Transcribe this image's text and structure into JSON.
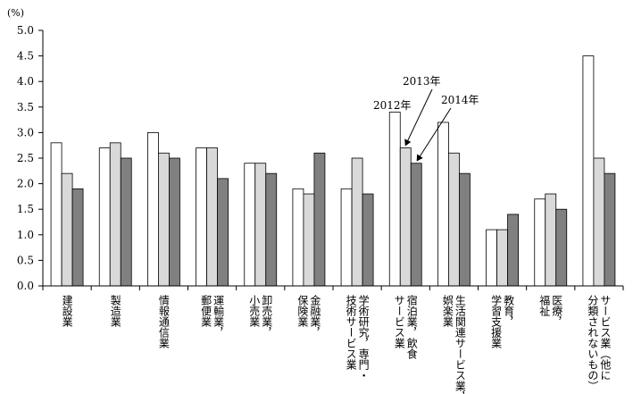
{
  "chart_data": {
    "type": "bar",
    "ylabel": "(%)",
    "ylim": [
      0,
      5
    ],
    "yticks": [
      "0.0",
      "0.5",
      "1.0",
      "1.5",
      "2.0",
      "2.5",
      "3.0",
      "3.5",
      "4.0",
      "4.5",
      "5.0"
    ],
    "categories": [
      [
        "建設業"
      ],
      [
        "製造業"
      ],
      [
        "情報通信業"
      ],
      [
        "運輸業，",
        "郵便業"
      ],
      [
        "卸売業，",
        "小売業"
      ],
      [
        "金融業，",
        "保険業"
      ],
      [
        "学術研究，専門・",
        "技術サービス業"
      ],
      [
        "宿泊業，飲食",
        "サービス業"
      ],
      [
        "生活関連サービス業，",
        "娯楽業"
      ],
      [
        "教育，",
        "学習支援業"
      ],
      [
        "医療，",
        "福祉"
      ],
      [
        "サービス業（他に",
        "分類されないもの）"
      ]
    ],
    "series": [
      {
        "name": "2012年",
        "color": "#ffffff",
        "values": [
          2.8,
          2.7,
          3.0,
          2.7,
          2.4,
          1.9,
          1.9,
          3.4,
          3.2,
          1.1,
          1.7,
          4.5
        ]
      },
      {
        "name": "2013年",
        "color": "#d9d9d9",
        "values": [
          2.2,
          2.8,
          2.6,
          2.7,
          2.4,
          1.8,
          2.5,
          2.7,
          2.6,
          1.1,
          1.8,
          2.5
        ]
      },
      {
        "name": "2014年",
        "color": "#808080",
        "values": [
          1.9,
          2.5,
          2.5,
          2.1,
          2.2,
          2.6,
          1.8,
          2.4,
          2.2,
          1.4,
          1.5,
          2.2
        ]
      }
    ],
    "annotations": [
      "2012年",
      "2013年",
      "2014年"
    ],
    "grid": false
  }
}
